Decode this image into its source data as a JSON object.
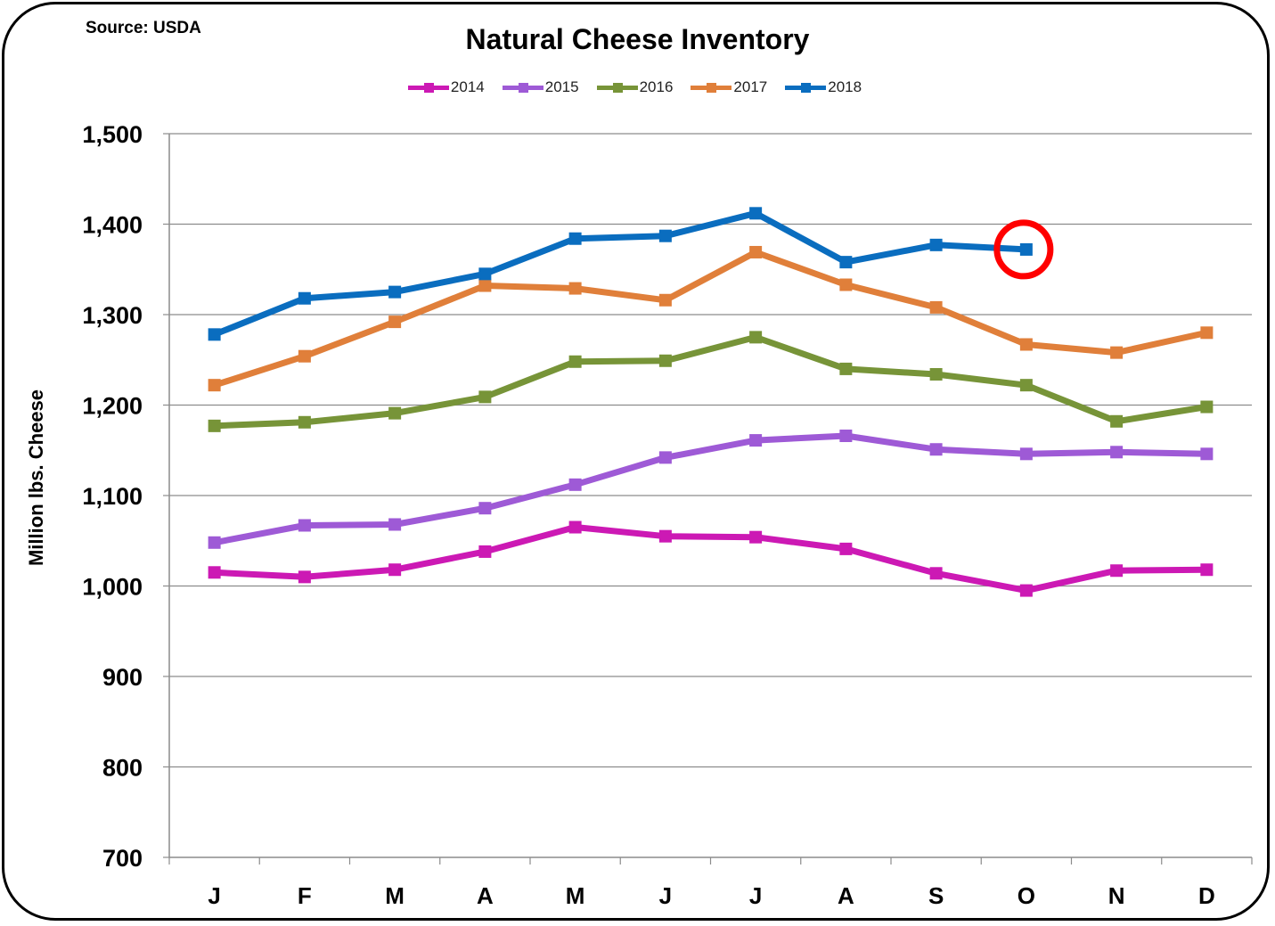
{
  "source": "Source: USDA",
  "chart_data": {
    "type": "line",
    "title": "Natural Cheese Inventory",
    "ylabel": "Million lbs. Cheese",
    "xlabel": "",
    "ylim": [
      700,
      1500
    ],
    "yticks": [
      700,
      800,
      900,
      1000,
      1100,
      1200,
      1300,
      1400,
      1500
    ],
    "ytick_labels": [
      "700",
      "800",
      "900",
      "1,000",
      "1,100",
      "1,200",
      "1,300",
      "1,400",
      "1,500"
    ],
    "categories": [
      "J",
      "F",
      "M",
      "A",
      "M",
      "J",
      "J",
      "A",
      "S",
      "O",
      "N",
      "D"
    ],
    "grid": "horizontal",
    "legend_position": "top",
    "series": [
      {
        "name": "2014",
        "color": "#CC19B4",
        "values": [
          1015,
          1010,
          1018,
          1038,
          1065,
          1055,
          1054,
          1041,
          1014,
          995,
          1017,
          1018
        ]
      },
      {
        "name": "2015",
        "color": "#9E5AD6",
        "values": [
          1048,
          1067,
          1068,
          1086,
          1112,
          1142,
          1161,
          1166,
          1151,
          1146,
          1148,
          1146
        ]
      },
      {
        "name": "2016",
        "color": "#779438",
        "values": [
          1177,
          1181,
          1191,
          1209,
          1248,
          1249,
          1275,
          1240,
          1234,
          1222,
          1182,
          1198
        ]
      },
      {
        "name": "2017",
        "color": "#E07F3A",
        "values": [
          1222,
          1254,
          1292,
          1332,
          1329,
          1316,
          1369,
          1333,
          1308,
          1267,
          1258,
          1280
        ]
      },
      {
        "name": "2018",
        "color": "#0A6DBF",
        "values": [
          1278,
          1318,
          1325,
          1345,
          1384,
          1387,
          1412,
          1358,
          1377,
          1372,
          null,
          null
        ]
      }
    ],
    "annotations": [
      {
        "type": "circle",
        "series": "2018",
        "category_index": 9,
        "color": "#FF0000"
      }
    ]
  }
}
